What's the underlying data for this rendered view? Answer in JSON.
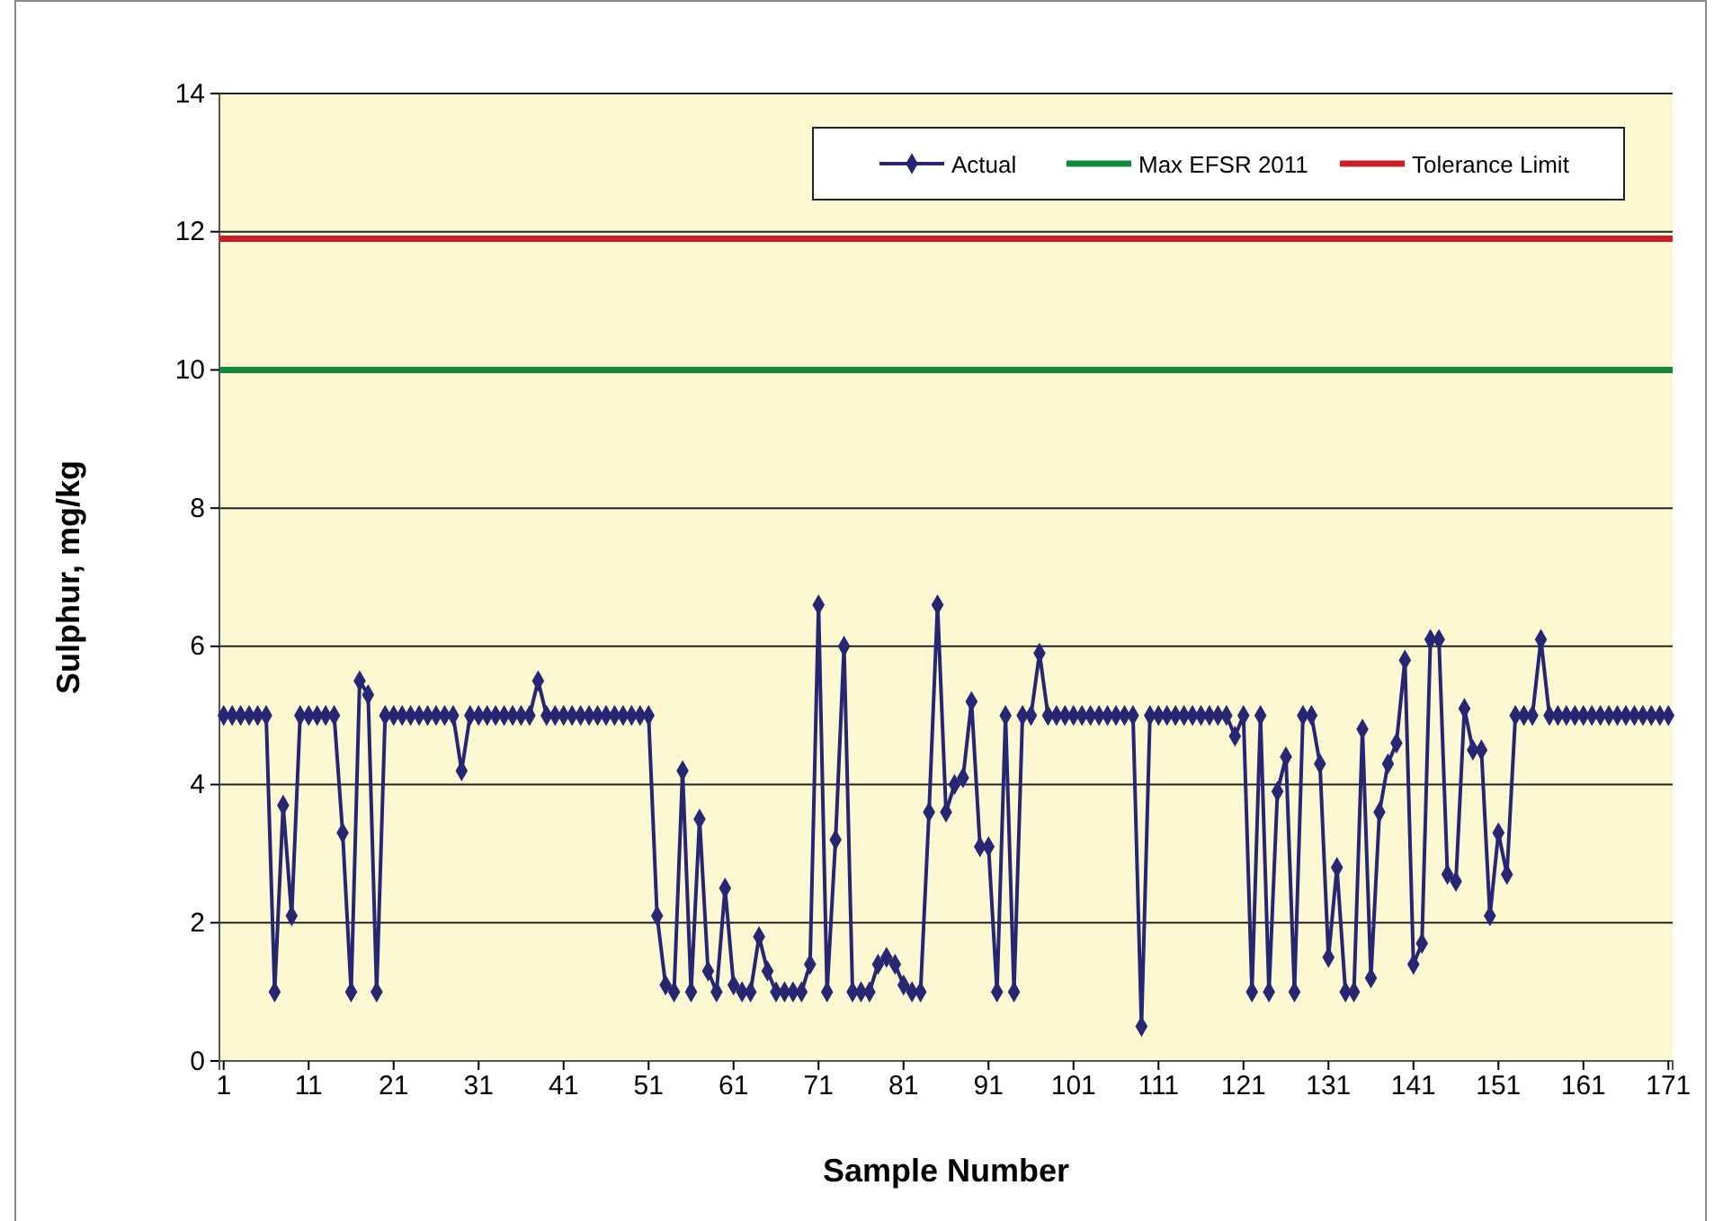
{
  "chart_data": {
    "type": "line",
    "xlabel": "Sample Number",
    "ylabel": "Sulphur, mg/kg",
    "xlim": [
      0.5,
      171.5
    ],
    "xticks": [
      1,
      11,
      21,
      31,
      41,
      51,
      61,
      71,
      81,
      91,
      101,
      111,
      121,
      131,
      141,
      151,
      161,
      171
    ],
    "ylim": [
      0,
      14
    ],
    "yticks": [
      0,
      2,
      4,
      6,
      8,
      10,
      12,
      14
    ],
    "grid": "y",
    "legend": "top right",
    "marker": "diamond",
    "line_style": "solid",
    "x": [
      1,
      2,
      3,
      4,
      5,
      6,
      7,
      8,
      9,
      10,
      11,
      12,
      13,
      14,
      15,
      16,
      17,
      18,
      19,
      20,
      21,
      22,
      23,
      24,
      25,
      26,
      27,
      28,
      29,
      30,
      31,
      32,
      33,
      34,
      35,
      36,
      37,
      38,
      39,
      40,
      41,
      42,
      43,
      44,
      45,
      46,
      47,
      48,
      49,
      50,
      51,
      52,
      53,
      54,
      55,
      56,
      57,
      58,
      59,
      60,
      61,
      62,
      63,
      64,
      65,
      66,
      67,
      68,
      69,
      70,
      71,
      72,
      73,
      74,
      75,
      76,
      77,
      78,
      79,
      80,
      81,
      82,
      83,
      84,
      85,
      86,
      87,
      88,
      89,
      90,
      91,
      92,
      93,
      94,
      95,
      96,
      97,
      98,
      99,
      100,
      101,
      102,
      103,
      104,
      105,
      106,
      107,
      108,
      109,
      110,
      111,
      112,
      113,
      114,
      115,
      116,
      117,
      118,
      119,
      120,
      121,
      122,
      123,
      124,
      125,
      126,
      127,
      128,
      129,
      130,
      131,
      132,
      133,
      134,
      135,
      136,
      137,
      138,
      139,
      140,
      141,
      142,
      143,
      144,
      145,
      146,
      147,
      148,
      149,
      150,
      151,
      152,
      153,
      154,
      155,
      156,
      157,
      158,
      159,
      160,
      161,
      162,
      163,
      164,
      165,
      166,
      167,
      168,
      169,
      170,
      171
    ],
    "series": [
      {
        "name": "Actual",
        "color": "#262673",
        "values": [
          5,
          5,
          5,
          5,
          5,
          5,
          1,
          3.7,
          2.1,
          5,
          5,
          5,
          5,
          5,
          3.3,
          1,
          5.5,
          5.3,
          1,
          5,
          5,
          5,
          5,
          5,
          5,
          5,
          5,
          5,
          4.2,
          5,
          5,
          5,
          5,
          5,
          5,
          5,
          5,
          5.5,
          5,
          5,
          5,
          5,
          5,
          5,
          5,
          5,
          5,
          5,
          5,
          5,
          5,
          2.1,
          1.1,
          1,
          4.2,
          1,
          3.5,
          1.3,
          1,
          2.5,
          1.1,
          1,
          1,
          1.8,
          1.3,
          1,
          1,
          1,
          1,
          1.4,
          6.6,
          1,
          3.2,
          6,
          1,
          1,
          1,
          1.4,
          1.5,
          1.4,
          1.1,
          1,
          1,
          3.6,
          6.6,
          3.6,
          4,
          4.1,
          5.2,
          3.1,
          3.1,
          1,
          5,
          1,
          5,
          5,
          5.9,
          5,
          5,
          5,
          5,
          5,
          5,
          5,
          5,
          5,
          5,
          5,
          0.5,
          5,
          5,
          5,
          5,
          5,
          5,
          5,
          5,
          5,
          5,
          4.7,
          5,
          1,
          5,
          1,
          3.9,
          4.4,
          1,
          5,
          5,
          4.3,
          1.5,
          2.8,
          1,
          1,
          4.8,
          1.2,
          3.6,
          4.3,
          4.6,
          5.8,
          1.4,
          1.7,
          6.1,
          6.1,
          2.7,
          2.6,
          5.1,
          4.5,
          4.5,
          2.1,
          3.3,
          2.7,
          5,
          5,
          5,
          6.1,
          5,
          5,
          5,
          5,
          5,
          5,
          5,
          5,
          5,
          5,
          5,
          5,
          5,
          5,
          5
        ]
      }
    ],
    "ref_lines": [
      {
        "axis": "y",
        "value": 10,
        "label": "Max EFSR 2011",
        "color": "#0f8a3c"
      },
      {
        "axis": "y",
        "value": 11.9,
        "label": "Tolerance Limit",
        "color": "#c8202a"
      }
    ]
  }
}
